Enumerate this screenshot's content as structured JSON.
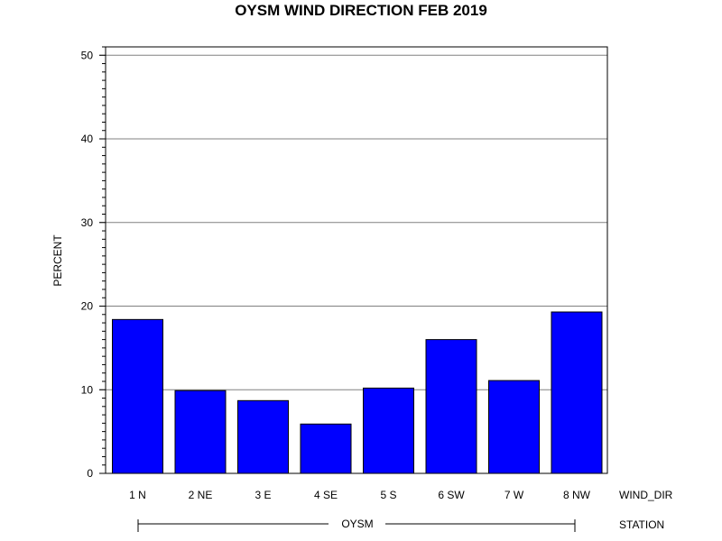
{
  "chart_data": {
    "type": "bar",
    "title": "OYSM WIND DIRECTION FEB 2019",
    "ylabel": "PERCENT",
    "xlabel": "WIND_DIR",
    "group_label": "STATION",
    "group_name": "OYSM",
    "categories": [
      "1 N",
      "2 NE",
      "3 E",
      "4 SE",
      "5 S",
      "6 SW",
      "7 W",
      "8 NW"
    ],
    "values": [
      18.4,
      9.9,
      8.7,
      5.9,
      10.2,
      16.0,
      11.1,
      19.3
    ],
    "ylim": [
      0,
      51
    ],
    "yticks": [
      0,
      10,
      20,
      30,
      40,
      50
    ],
    "grid": true,
    "bar_color": "#0000ff",
    "bar_edge_color": "#000000"
  }
}
